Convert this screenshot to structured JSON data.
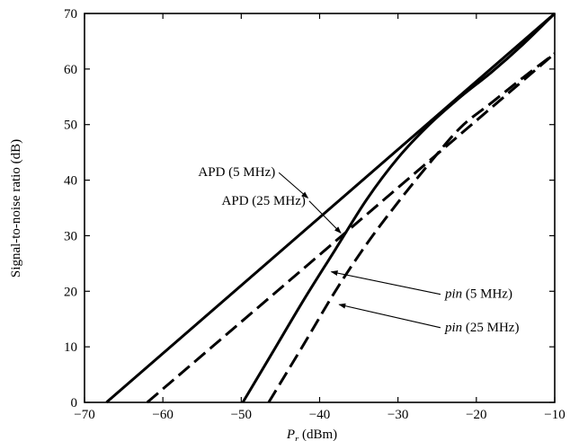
{
  "chart_data": {
    "type": "line",
    "title": "",
    "xlabel": {
      "symbol": "P",
      "subscript": "r",
      "unit": "(dBm)"
    },
    "ylabel": "Signal-to-noise ratio (dB)",
    "xlim": [
      -70,
      -10
    ],
    "ylim": [
      0,
      70
    ],
    "xticks": [
      -70,
      -60,
      -50,
      -40,
      -30,
      -20,
      -10
    ],
    "xtick_labels": [
      "−70",
      "−60",
      "−50",
      "−40",
      "−30",
      "−20",
      "−10"
    ],
    "yticks": [
      0,
      10,
      20,
      30,
      40,
      50,
      60,
      70
    ],
    "ytick_labels": [
      "0",
      "10",
      "20",
      "30",
      "40",
      "50",
      "60",
      "70"
    ],
    "grid": false,
    "legend": "none (curves labeled by annotations with arrows)",
    "series": [
      {
        "name": "APD (5 MHz)",
        "style": "solid",
        "x": [
          -67.2,
          -10
        ],
        "y": [
          0,
          70
        ]
      },
      {
        "name": "APD (25 MHz)",
        "style": "dashed",
        "x": [
          -62,
          -10
        ],
        "y": [
          0,
          62.8
        ]
      },
      {
        "name": "pin (5 MHz)",
        "style": "solid",
        "x": [
          -49.8,
          -46,
          -42,
          -38,
          -34,
          -30,
          -26,
          -22,
          -18,
          -14,
          -10
        ],
        "y": [
          0,
          9,
          18.5,
          27.5,
          36.5,
          44,
          50,
          55,
          59.5,
          64.5,
          70
        ]
      },
      {
        "name": "pin (25 MHz)",
        "style": "dashed",
        "x": [
          -46.5,
          -42,
          -38,
          -34,
          -30,
          -26,
          -22,
          -18,
          -14,
          -10
        ],
        "y": [
          0,
          10.5,
          20,
          28.5,
          36,
          43,
          49.5,
          54,
          58.5,
          62.8
        ]
      }
    ],
    "annotations": [
      {
        "label": "APD (5 MHz)",
        "text": "APD (5 MHz)",
        "italic": "",
        "text_at": [
          -55.5,
          40.7
        ],
        "arrow_to": [
          -41.5,
          36.8
        ]
      },
      {
        "label": "APD (25 MHz)",
        "text": "APD (25 MHz)",
        "italic": "",
        "text_at": [
          -52.5,
          35.6
        ],
        "arrow_to": [
          -37.3,
          30.5
        ]
      },
      {
        "label": "pin (5 MHz)",
        "italic": "pin",
        "text": " (5 MHz)",
        "text_at": [
          -24,
          18.8
        ],
        "arrow_to": [
          -38.5,
          23.5
        ]
      },
      {
        "label": "pin (25 MHz)",
        "italic": "pin",
        "text": " (25 MHz)",
        "text_at": [
          -24,
          12.8
        ],
        "arrow_to": [
          -37.5,
          17.6
        ]
      }
    ]
  }
}
